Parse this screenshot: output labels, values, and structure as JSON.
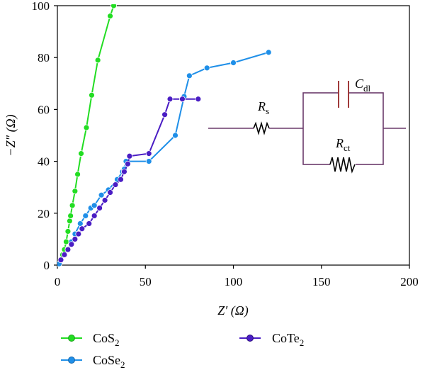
{
  "chart_data": {
    "type": "scatter",
    "title": "",
    "xlabel": "Z′ (Ω)",
    "ylabel": "−Z″ (Ω)",
    "xlim": [
      0,
      200
    ],
    "ylim": [
      0,
      100
    ],
    "x_ticks": [
      "0",
      "50",
      "100",
      "150",
      "200"
    ],
    "y_ticks": [
      "0",
      "20",
      "40",
      "60",
      "80",
      "100"
    ],
    "grid": false,
    "legend_position": "bottom",
    "series": [
      {
        "name": "CoS₂",
        "name_base": "CoS",
        "name_sub": "2",
        "color": "#22dd22",
        "x": [
          1,
          2,
          3,
          4,
          5,
          6,
          7,
          7.5,
          8.5,
          10,
          11.5,
          13.5,
          16.5,
          19.5,
          23,
          30,
          32
        ],
        "y": [
          0.5,
          2,
          4,
          6,
          9,
          13,
          17,
          19,
          23,
          28.5,
          35,
          43,
          53,
          65.5,
          79,
          96,
          100
        ]
      },
      {
        "name": "CoSe₂",
        "name_base": "CoSe",
        "name_sub": "2",
        "color": "#1f8fe8",
        "x": [
          1,
          2,
          4,
          6,
          8,
          10,
          13,
          16,
          19,
          21,
          25,
          29,
          34,
          37,
          38,
          39,
          52,
          67,
          72,
          75,
          85,
          100,
          120
        ],
        "y": [
          0.5,
          2,
          4,
          6,
          9,
          12,
          16,
          19,
          22,
          23,
          27,
          29,
          33,
          36,
          37,
          40,
          40,
          50,
          65,
          73,
          76,
          78,
          82
        ]
      },
      {
        "name": "CoTe₂",
        "name_base": "CoTe",
        "name_sub": "2",
        "color": "#4a1dc4",
        "x": [
          2,
          4,
          6,
          8,
          10,
          12,
          14,
          18,
          21,
          24,
          27,
          30,
          33,
          36,
          38,
          40,
          41,
          52,
          61,
          64,
          71,
          80
        ],
        "y": [
          2,
          4,
          6,
          8,
          10,
          12,
          14,
          16,
          19,
          22,
          25,
          28,
          31,
          33,
          36,
          39,
          42,
          43,
          58,
          64,
          64,
          64
        ]
      }
    ]
  },
  "circuit": {
    "rs_base": "R",
    "rs_sub": "s",
    "cdl_base": "C",
    "cdl_sub": "dl",
    "rct_base": "R",
    "rct_sub": "ct",
    "colors": {
      "wire": "#6a3a6a",
      "capacitor": "#a03a3a",
      "resistor": "#000000"
    }
  }
}
